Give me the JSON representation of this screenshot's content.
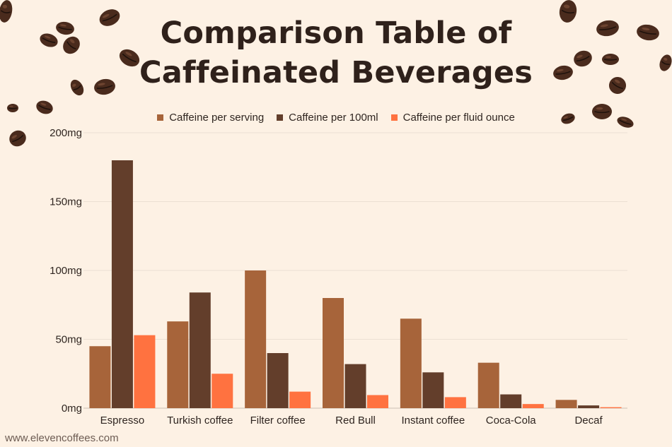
{
  "chart_data": {
    "type": "bar",
    "title": "Comparison Table of Caffeinated Beverages",
    "title_lines": [
      "Comparison Table of",
      "Caffeinated Beverages"
    ],
    "categories": [
      "Espresso",
      "Turkish coffee",
      "Filter coffee",
      "Red Bull",
      "Instant coffee",
      "Coca-Cola",
      "Decaf"
    ],
    "series": [
      {
        "name": "Caffeine per serving",
        "color": "#a7643a",
        "values": [
          45,
          63,
          100,
          80,
          65,
          33,
          6
        ]
      },
      {
        "name": "Caffeine per 100ml",
        "color": "#633e2b",
        "values": [
          180,
          84,
          40,
          32,
          26,
          10,
          2
        ]
      },
      {
        "name": "Caffeine per fluid ounce",
        "color": "#ff7240",
        "values": [
          53,
          25,
          12,
          9.5,
          8,
          3,
          0.7
        ]
      }
    ],
    "y_ticks": [
      "0mg",
      "50mg",
      "100mg",
      "150mg",
      "200mg"
    ],
    "ylim": [
      0,
      200
    ],
    "grid": true,
    "legend_position": "top"
  },
  "footer": {
    "website": "www.elevencoffees.com"
  },
  "decorations": {
    "icon": "coffee-bean-icon",
    "color": "#4a2b1d"
  }
}
